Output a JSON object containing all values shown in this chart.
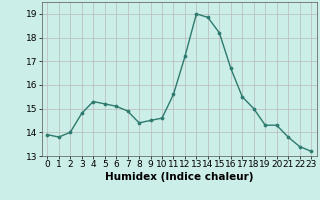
{
  "x": [
    0,
    1,
    2,
    3,
    4,
    5,
    6,
    7,
    8,
    9,
    10,
    11,
    12,
    13,
    14,
    15,
    16,
    17,
    18,
    19,
    20,
    21,
    22,
    23
  ],
  "y": [
    13.9,
    13.8,
    14.0,
    14.8,
    15.3,
    15.2,
    15.1,
    14.9,
    14.4,
    14.5,
    14.6,
    15.6,
    17.2,
    19.0,
    18.85,
    18.2,
    16.7,
    15.5,
    15.0,
    14.3,
    14.3,
    13.8,
    13.4,
    13.2
  ],
  "line_color": "#2d7a6e",
  "marker": "o",
  "marker_size": 2.2,
  "line_width": 1.0,
  "xlabel": "Humidex (Indice chaleur)",
  "xlabel_fontsize": 7.5,
  "ylim": [
    13,
    19.5
  ],
  "xlim": [
    -0.5,
    23.5
  ],
  "yticks": [
    13,
    14,
    15,
    16,
    17,
    18,
    19
  ],
  "xticks": [
    0,
    1,
    2,
    3,
    4,
    5,
    6,
    7,
    8,
    9,
    10,
    11,
    12,
    13,
    14,
    15,
    16,
    17,
    18,
    19,
    20,
    21,
    22,
    23
  ],
  "bg_color": "#cceee8",
  "grid_color": "#b8b8b8",
  "tick_fontsize": 6.5
}
